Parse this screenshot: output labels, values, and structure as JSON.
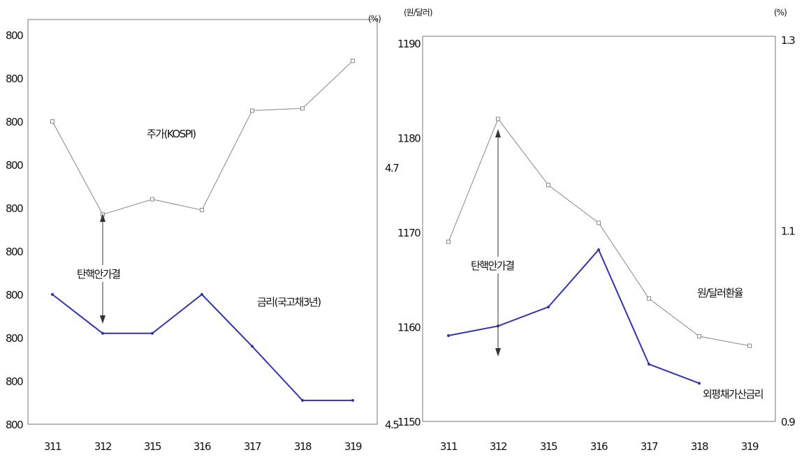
{
  "chart_data": [
    {
      "type": "line",
      "categories": [
        "3.11",
        "3.12",
        "3.15",
        "3.16",
        "3.17",
        "3.18",
        "3.19"
      ],
      "category_labels": [
        "311",
        "312",
        "315",
        "316",
        "317",
        "318",
        "319"
      ],
      "left_axis": {
        "tick_labels": [
          "800",
          "800",
          "800",
          "800",
          "800",
          "800",
          "800",
          "800",
          "800",
          "800"
        ],
        "ylim": [
          0,
          9
        ]
      },
      "right_axis": {
        "unit": "(%)",
        "tick_labels": [
          "4.5",
          "4.7"
        ],
        "ylim": [
          4.5,
          4.7
        ]
      },
      "grid": false,
      "series": [
        {
          "name": "주가(KOSPI)",
          "axis": "left",
          "color": "#888888",
          "values": [
            7.0,
            4.85,
            5.2,
            4.95,
            7.25,
            7.3,
            8.4
          ]
        },
        {
          "name": "금리(국고채3년)",
          "axis": "left",
          "color": "#3333aa",
          "values": [
            3.0,
            2.1,
            2.1,
            3.0,
            1.8,
            0.55,
            0.55
          ]
        }
      ],
      "annotations": [
        {
          "text": "탄핵안가결",
          "category_index": 1
        }
      ]
    },
    {
      "type": "line",
      "categories": [
        "3.11",
        "3.12",
        "3.15",
        "3.16",
        "3.17",
        "3.18",
        "3.19"
      ],
      "category_labels": [
        "311",
        "312",
        "315",
        "316",
        "317",
        "318",
        "319"
      ],
      "left_axis": {
        "unit": "(원/달러)",
        "tick_labels": [
          "1150",
          "1160",
          "1170",
          "1180",
          "1190"
        ],
        "ylim": [
          1150,
          1190
        ]
      },
      "right_axis": {
        "unit": "(%)",
        "tick_labels": [
          "0.9",
          "1.1",
          "1.3"
        ],
        "ylim": [
          0.9,
          1.3
        ]
      },
      "grid": false,
      "series": [
        {
          "name": "원/달러환율",
          "axis": "left",
          "color": "#888888",
          "values": [
            1169.0,
            1182.0,
            1175.0,
            1171.0,
            1163.0,
            1159.0,
            1158.0
          ]
        },
        {
          "name": "외평채가산금리",
          "axis": "right",
          "color": "#3333aa",
          "values": [
            0.99,
            1.0,
            1.02,
            1.08,
            0.96,
            0.94,
            null
          ]
        }
      ],
      "annotations": [
        {
          "text": "탄핵안가결",
          "category_index": 1
        }
      ]
    }
  ]
}
